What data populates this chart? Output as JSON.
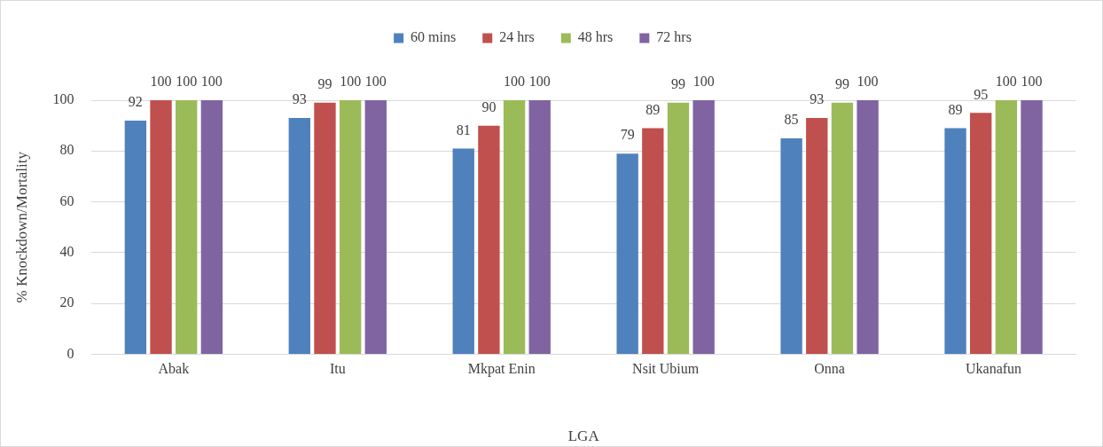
{
  "chart_data": {
    "type": "bar",
    "xlabel": "LGA",
    "ylabel": "% Knockdown/Mortality",
    "categories": [
      "Abak",
      "Itu",
      "Mkpat Enin",
      "Nsit Ubium",
      "Onna",
      "Ukanafun"
    ],
    "series": [
      {
        "name": "60 mins",
        "color": "#4f81bd",
        "values": [
          92,
          93,
          81,
          79,
          85,
          89
        ]
      },
      {
        "name": "24 hrs",
        "color": "#c0504d",
        "values": [
          100,
          99,
          90,
          89,
          93,
          95
        ]
      },
      {
        "name": "48 hrs",
        "color": "#9bbb59",
        "values": [
          100,
          100,
          100,
          99,
          99,
          100
        ]
      },
      {
        "name": "72 hrs",
        "color": "#8064a2",
        "values": [
          100,
          100,
          100,
          100,
          100,
          100
        ]
      }
    ],
    "ylim": [
      0,
      100
    ],
    "yticks": [
      0,
      20,
      40,
      60,
      80,
      100
    ],
    "grid": "y",
    "legend": "top",
    "data_labels": true
  }
}
